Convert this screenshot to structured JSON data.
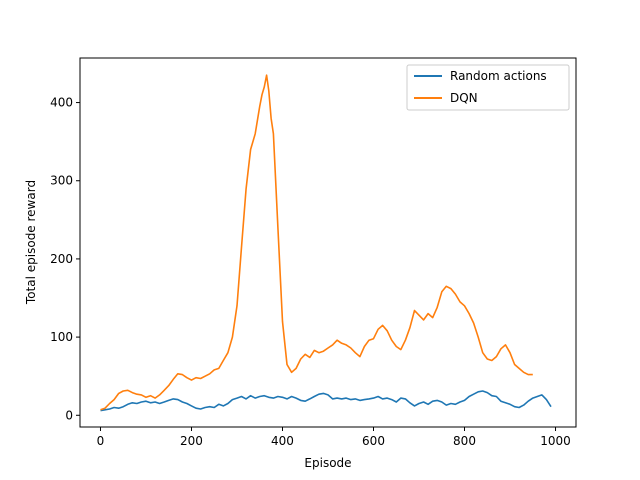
{
  "chart_data": {
    "type": "line",
    "title": "",
    "xlabel": "Episode",
    "ylabel": "Total episode reward",
    "xlim": [
      -45,
      1045
    ],
    "ylim": [
      -15,
      457
    ],
    "xticks": [
      0,
      200,
      400,
      600,
      800,
      1000
    ],
    "yticks": [
      0,
      100,
      200,
      300,
      400
    ],
    "grid": false,
    "legend_position": "top-right",
    "series": [
      {
        "name": "Random actions",
        "color": "#1f77b4",
        "x": [
          0,
          10,
          20,
          30,
          40,
          50,
          60,
          70,
          80,
          90,
          100,
          110,
          120,
          130,
          140,
          150,
          160,
          170,
          180,
          190,
          200,
          210,
          220,
          230,
          240,
          250,
          260,
          270,
          280,
          290,
          300,
          310,
          320,
          330,
          340,
          350,
          360,
          370,
          380,
          390,
          400,
          410,
          420,
          430,
          440,
          450,
          460,
          470,
          480,
          490,
          500,
          510,
          520,
          530,
          540,
          550,
          560,
          570,
          580,
          590,
          600,
          610,
          620,
          630,
          640,
          650,
          660,
          670,
          680,
          690,
          700,
          710,
          720,
          730,
          740,
          750,
          760,
          770,
          780,
          790,
          800,
          810,
          820,
          830,
          840,
          850,
          860,
          870,
          880,
          890,
          900,
          910,
          920,
          930,
          940,
          950,
          960,
          970,
          980,
          990
        ],
        "values": [
          6,
          7,
          8,
          10,
          9,
          11,
          14,
          16,
          15,
          17,
          18,
          16,
          17,
          15,
          17,
          19,
          21,
          20,
          17,
          15,
          12,
          9,
          8,
          10,
          11,
          10,
          14,
          12,
          15,
          20,
          22,
          24,
          21,
          25,
          22,
          24,
          25,
          23,
          22,
          24,
          23,
          21,
          24,
          22,
          19,
          18,
          21,
          24,
          27,
          28,
          26,
          21,
          22,
          21,
          22,
          20,
          21,
          19,
          20,
          21,
          22,
          24,
          21,
          22,
          20,
          17,
          22,
          21,
          16,
          12,
          15,
          17,
          14,
          18,
          19,
          17,
          13,
          15,
          14,
          17,
          19,
          24,
          27,
          30,
          31,
          29,
          25,
          24,
          18,
          16,
          14,
          11,
          10,
          13,
          18,
          22,
          24,
          26,
          20,
          11
        ]
      },
      {
        "name": "DQN",
        "color": "#ff7f0e",
        "x": [
          0,
          10,
          20,
          30,
          40,
          50,
          60,
          70,
          80,
          90,
          100,
          110,
          120,
          130,
          140,
          150,
          160,
          170,
          180,
          190,
          200,
          210,
          220,
          230,
          240,
          250,
          260,
          270,
          280,
          290,
          300,
          310,
          320,
          330,
          340,
          350,
          355,
          360,
          365,
          370,
          375,
          380,
          390,
          400,
          410,
          420,
          430,
          440,
          450,
          460,
          470,
          480,
          490,
          500,
          510,
          520,
          530,
          540,
          550,
          560,
          570,
          580,
          590,
          600,
          610,
          620,
          630,
          640,
          650,
          660,
          670,
          680,
          690,
          700,
          710,
          720,
          730,
          740,
          750,
          760,
          770,
          780,
          790,
          800,
          810,
          820,
          830,
          840,
          850,
          860,
          870,
          880,
          890,
          900,
          910,
          920,
          930,
          940,
          950
        ],
        "values": [
          7,
          9,
          15,
          20,
          28,
          31,
          32,
          29,
          27,
          26,
          23,
          25,
          22,
          26,
          32,
          38,
          46,
          53,
          52,
          48,
          45,
          48,
          47,
          50,
          53,
          58,
          60,
          70,
          80,
          100,
          140,
          215,
          290,
          340,
          360,
          395,
          410,
          420,
          435,
          415,
          380,
          360,
          240,
          120,
          65,
          55,
          60,
          72,
          78,
          74,
          83,
          80,
          82,
          86,
          90,
          96,
          92,
          90,
          86,
          80,
          75,
          88,
          96,
          98,
          110,
          115,
          108,
          96,
          88,
          84,
          96,
          112,
          134,
          128,
          122,
          130,
          125,
          138,
          158,
          165,
          162,
          155,
          145,
          140,
          130,
          118,
          100,
          80,
          72,
          70,
          75,
          85,
          90,
          80,
          65,
          60,
          55,
          52,
          52
        ]
      }
    ]
  }
}
